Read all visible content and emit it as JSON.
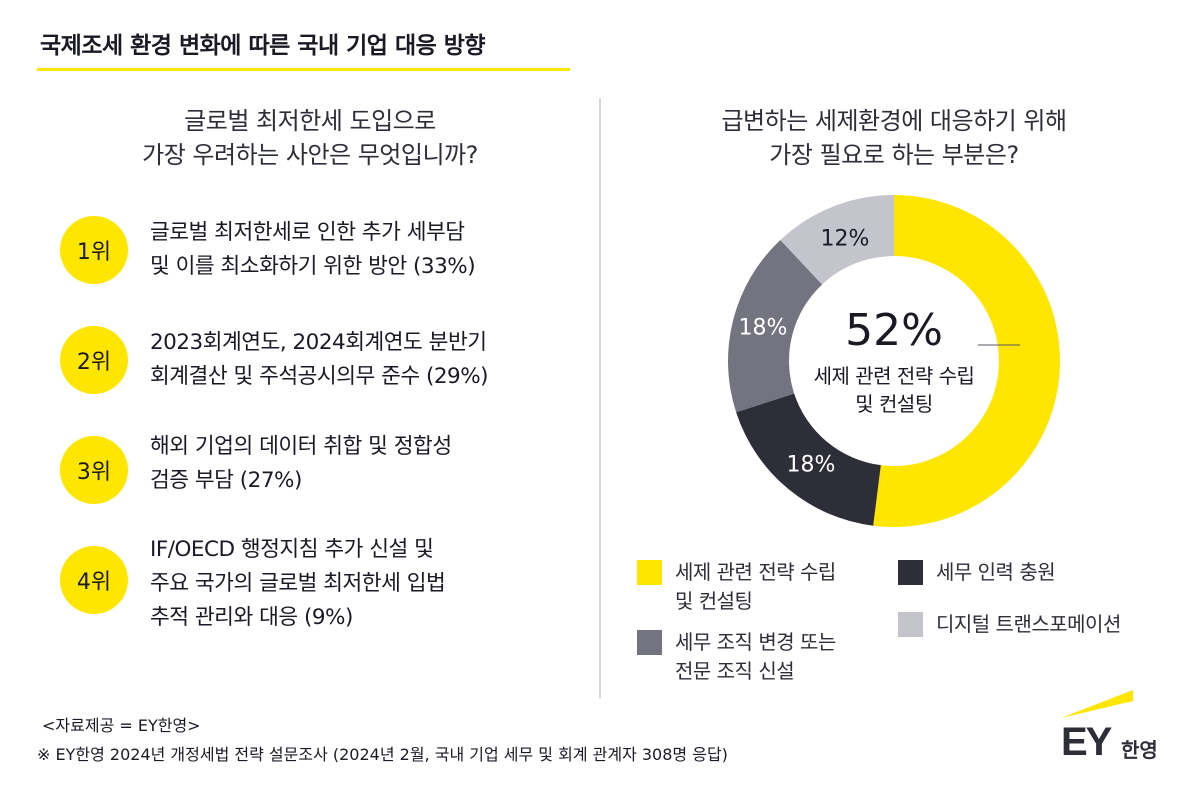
{
  "header": {
    "title": "국제조세 환경 변화에 따른 국내 기업 대응 방향"
  },
  "left_panel": {
    "question_lines": [
      "글로벌 최저한세 도입으로",
      "가장 우려하는 사안은 무엇입니까?"
    ],
    "ranks": [
      {
        "badge": "1위",
        "lines": [
          "글로벌 최저한세로 인한 추가 세부담",
          "및 이를 최소화하기 위한 방안 (33%)"
        ],
        "percent": 33
      },
      {
        "badge": "2위",
        "lines": [
          "2023회계연도, 2024회계연도 분반기",
          "회계결산 및 주석공시의무 준수 (29%)"
        ],
        "percent": 29
      },
      {
        "badge": "3위",
        "lines": [
          "해외 기업의 데이터 취합 및 정합성",
          "검증 부담 (27%)"
        ],
        "percent": 27
      },
      {
        "badge": "4위",
        "lines": [
          "IF/OECD 행정지침 추가 신설 및",
          "주요 국가의 글로벌 최저한세 입법",
          "추적 관리와 대응 (9%)"
        ],
        "percent": 9
      }
    ]
  },
  "right_panel": {
    "question_lines": [
      "급변하는 세제환경에 대응하기 위해",
      "가장 필요로 하는 부분은?"
    ],
    "center_value": "52%",
    "center_label_lines": [
      "세제 관련 전략 수립",
      "및 컨설팅"
    ],
    "segment_labels": {
      "dark": "18%",
      "grey": "18%",
      "light": "12%"
    },
    "legend": [
      {
        "lines": [
          "세제 관련 전략 수립",
          "및 컨설팅"
        ],
        "color": "#FFE600"
      },
      {
        "lines": [
          "세무 조직 변경 또는",
          "전문 조직 신설"
        ],
        "color": "#747480"
      },
      {
        "lines": [
          "세무 인력 충원"
        ],
        "color": "#2E2E38"
      },
      {
        "lines": [
          "디지털 트랜스포메이션"
        ],
        "color": "#C4C4CD"
      }
    ]
  },
  "chart_data": [
    {
      "type": "table",
      "title": "글로벌 최저한세 도입으로 가장 우려하는 사안은 무엇입니까?",
      "categories": [
        "글로벌 최저한세로 인한 추가 세부담 및 이를 최소화하기 위한 방안",
        "2023회계연도, 2024회계연도 분반기 회계결산 및 주석공시의무 준수",
        "해외 기업의 데이터 취합 및 정합성 검증 부담",
        "IF/OECD 행정지침 추가 신설 및 주요 국가의 글로벌 최저한세 입법 추적 관리와 대응"
      ],
      "ranks": [
        "1위",
        "2위",
        "3위",
        "4위"
      ],
      "values": [
        33,
        29,
        27,
        9
      ],
      "unit": "%"
    },
    {
      "type": "pie",
      "variant": "donut",
      "title": "급변하는 세제환경에 대응하기 위해 가장 필요로 하는 부분은?",
      "categories": [
        "세제 관련 전략 수립 및 컨설팅",
        "세무 인력 충원",
        "세무 조직 변경 또는 전문 조직 신설",
        "디지털 트랜스포메이션"
      ],
      "values": [
        52,
        18,
        18,
        12
      ],
      "colors": [
        "#FFE600",
        "#2E2E38",
        "#747480",
        "#C4C4CD"
      ],
      "unit": "%",
      "start_angle": "12 o'clock, clockwise",
      "legend_position": "bottom"
    }
  ],
  "footer": {
    "source_label": "<자료제공 = EY한영>",
    "survey_note": "※ EY한영 2024년 개정세법 전략 설문조사 (2024년 2월, 국내 기업 세무 및 회계 관계자 308명 응답)"
  },
  "logo": {
    "brand": "EY",
    "korean": "한영",
    "beam_color": "#FFE600"
  },
  "colors": {
    "accent_yellow": "#FFE600",
    "dark": "#2E2E38",
    "grey": "#747480",
    "light_grey": "#C4C4CD"
  }
}
